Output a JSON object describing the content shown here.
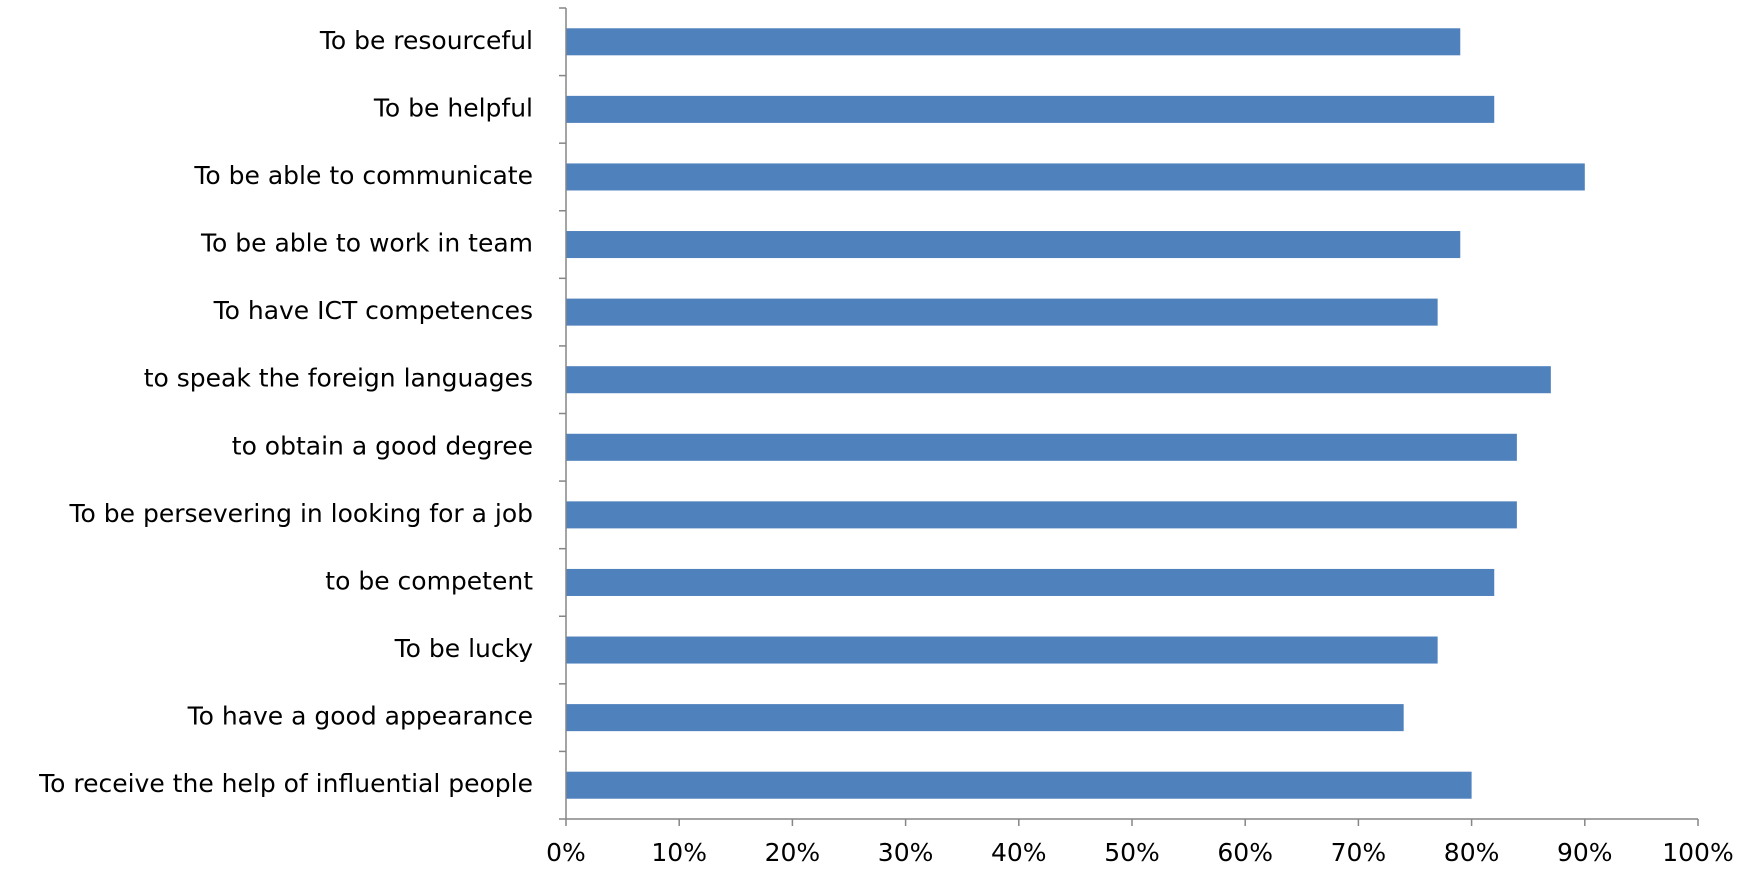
{
  "chart_data": {
    "type": "bar",
    "orientation": "horizontal",
    "title": "",
    "xlabel": "",
    "ylabel": "",
    "categories": [
      "To be resourceful",
      "To be helpful",
      "To be able to communicate",
      "To be able to work in team",
      "To have ICT competences",
      "to speak the foreign languages",
      "to obtain a good degree",
      "To be persevering in looking for a job",
      "to be competent",
      "To be lucky",
      "To have a good appearance",
      "To receive the help of influential people"
    ],
    "values": [
      79,
      82,
      90,
      79,
      77,
      87,
      84,
      84,
      82,
      77,
      74,
      80
    ],
    "value_unit": "%",
    "xlim": [
      0,
      100
    ],
    "ticks": [
      0,
      10,
      20,
      30,
      40,
      50,
      60,
      70,
      80,
      90,
      100
    ],
    "tick_labels": [
      "0%",
      "10%",
      "20%",
      "30%",
      "40%",
      "50%",
      "60%",
      "70%",
      "80%",
      "90%",
      "100%"
    ],
    "bar_color": "#4F81BD",
    "grid": false,
    "legend": "none"
  }
}
